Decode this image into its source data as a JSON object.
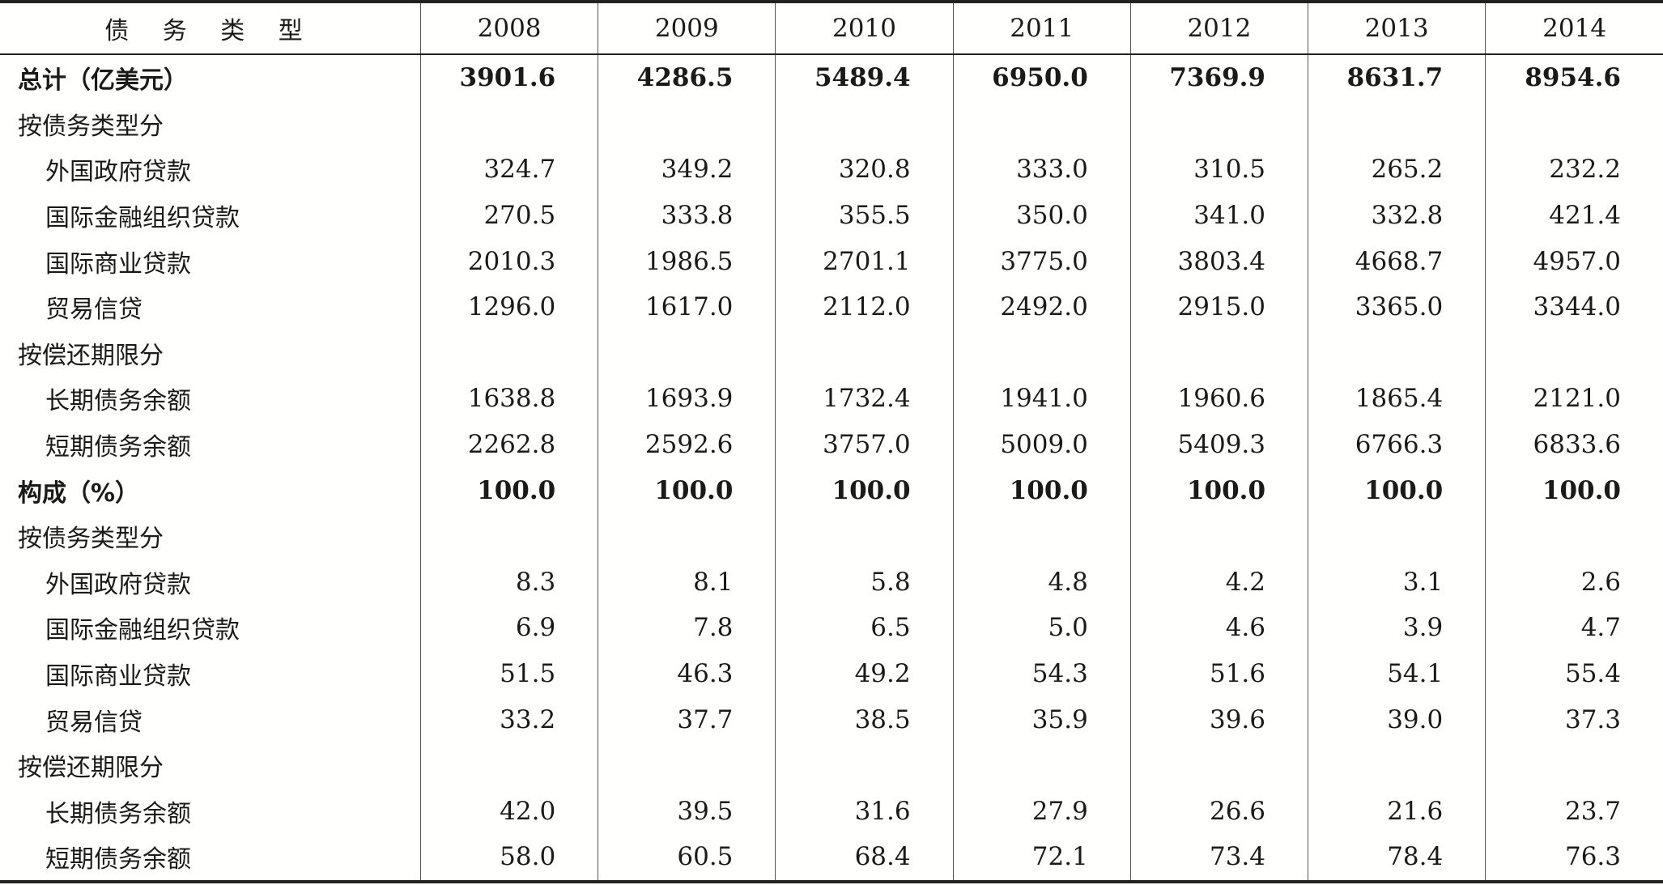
{
  "header": {
    "label": "债 务 类 型",
    "years": [
      "2008",
      "2009",
      "2010",
      "2011",
      "2012",
      "2013",
      "2014"
    ]
  },
  "rows": [
    {
      "label": "总计（亿美元）",
      "values": [
        "3901.6",
        "4286.5",
        "5489.4",
        "6950.0",
        "7369.9",
        "8631.7",
        "8954.6"
      ]
    },
    {
      "label": "按债务类型分",
      "values": [
        "",
        "",
        "",
        "",
        "",
        "",
        ""
      ]
    },
    {
      "label": "外国政府贷款",
      "values": [
        "324.7",
        "349.2",
        "320.8",
        "333.0",
        "310.5",
        "265.2",
        "232.2"
      ]
    },
    {
      "label": "国际金融组织贷款",
      "values": [
        "270.5",
        "333.8",
        "355.5",
        "350.0",
        "341.0",
        "332.8",
        "421.4"
      ]
    },
    {
      "label": "国际商业贷款",
      "values": [
        "2010.3",
        "1986.5",
        "2701.1",
        "3775.0",
        "3803.4",
        "4668.7",
        "4957.0"
      ]
    },
    {
      "label": "贸易信贷",
      "values": [
        "1296.0",
        "1617.0",
        "2112.0",
        "2492.0",
        "2915.0",
        "3365.0",
        "3344.0"
      ]
    },
    {
      "label": "按偿还期限分",
      "values": [
        "",
        "",
        "",
        "",
        "",
        "",
        ""
      ]
    },
    {
      "label": "长期债务余额",
      "values": [
        "1638.8",
        "1693.9",
        "1732.4",
        "1941.0",
        "1960.6",
        "1865.4",
        "2121.0"
      ]
    },
    {
      "label": "短期债务余额",
      "values": [
        "2262.8",
        "2592.6",
        "3757.0",
        "5009.0",
        "5409.3",
        "6766.3",
        "6833.6"
      ]
    },
    {
      "label": "构成（%）",
      "values": [
        "100.0",
        "100.0",
        "100.0",
        "100.0",
        "100.0",
        "100.0",
        "100.0"
      ]
    },
    {
      "label": "按债务类型分",
      "values": [
        "",
        "",
        "",
        "",
        "",
        "",
        ""
      ]
    },
    {
      "label": "外国政府贷款",
      "values": [
        "8.3",
        "8.1",
        "5.8",
        "4.8",
        "4.2",
        "3.1",
        "2.6"
      ]
    },
    {
      "label": "国际金融组织贷款",
      "values": [
        "6.9",
        "7.8",
        "6.5",
        "5.0",
        "4.6",
        "3.9",
        "4.7"
      ]
    },
    {
      "label": "国际商业贷款",
      "values": [
        "51.5",
        "46.3",
        "49.2",
        "54.3",
        "51.6",
        "54.1",
        "55.4"
      ]
    },
    {
      "label": "贸易信贷",
      "values": [
        "33.2",
        "37.7",
        "38.5",
        "35.9",
        "39.6",
        "39.0",
        "37.3"
      ]
    },
    {
      "label": "按偿还期限分",
      "values": [
        "",
        "",
        "",
        "",
        "",
        "",
        ""
      ]
    },
    {
      "label": "长期债务余额",
      "values": [
        "42.0",
        "39.5",
        "31.6",
        "27.9",
        "26.6",
        "21.6",
        "23.7"
      ]
    },
    {
      "label": "短期债务余额",
      "values": [
        "58.0",
        "60.5",
        "68.4",
        "72.1",
        "73.4",
        "78.4",
        "76.3"
      ]
    }
  ]
}
